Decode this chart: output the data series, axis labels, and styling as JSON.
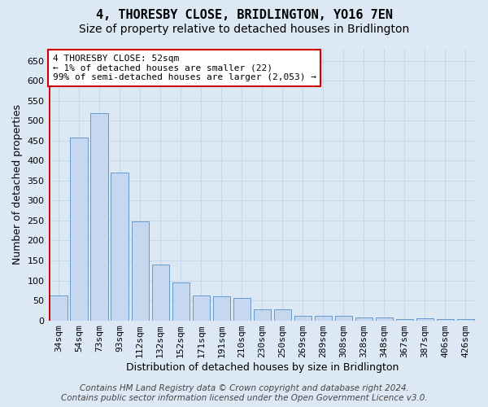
{
  "title": "4, THORESBY CLOSE, BRIDLINGTON, YO16 7EN",
  "subtitle": "Size of property relative to detached houses in Bridlington",
  "xlabel": "Distribution of detached houses by size in Bridlington",
  "ylabel": "Number of detached properties",
  "categories": [
    "34sqm",
    "54sqm",
    "73sqm",
    "93sqm",
    "112sqm",
    "132sqm",
    "152sqm",
    "171sqm",
    "191sqm",
    "210sqm",
    "230sqm",
    "250sqm",
    "269sqm",
    "289sqm",
    "308sqm",
    "328sqm",
    "348sqm",
    "367sqm",
    "387sqm",
    "406sqm",
    "426sqm"
  ],
  "values": [
    62,
    458,
    519,
    370,
    248,
    140,
    95,
    63,
    60,
    56,
    27,
    27,
    11,
    12,
    11,
    8,
    7,
    4,
    6,
    4,
    4
  ],
  "bar_color": "#c5d8f0",
  "bar_edge_color": "#6699cc",
  "ylim": [
    0,
    680
  ],
  "yticks": [
    0,
    50,
    100,
    150,
    200,
    250,
    300,
    350,
    400,
    450,
    500,
    550,
    600,
    650
  ],
  "annotation_line1": "4 THORESBY CLOSE: 52sqm",
  "annotation_line2": "← 1% of detached houses are smaller (22)",
  "annotation_line3": "99% of semi-detached houses are larger (2,053) →",
  "annotation_box_facecolor": "#ffffff",
  "annotation_box_edgecolor": "#cc0000",
  "red_line_x": -0.5,
  "background_color": "#dde8f5",
  "grid_color": "#c8d8e8",
  "title_fontsize": 11,
  "subtitle_fontsize": 10,
  "xlabel_fontsize": 9,
  "ylabel_fontsize": 9,
  "tick_fontsize": 8,
  "annotation_fontsize": 8,
  "footer_fontsize": 7.5,
  "footer_line1": "Contains HM Land Registry data © Crown copyright and database right 2024.",
  "footer_line2": "Contains public sector information licensed under the Open Government Licence v3.0."
}
